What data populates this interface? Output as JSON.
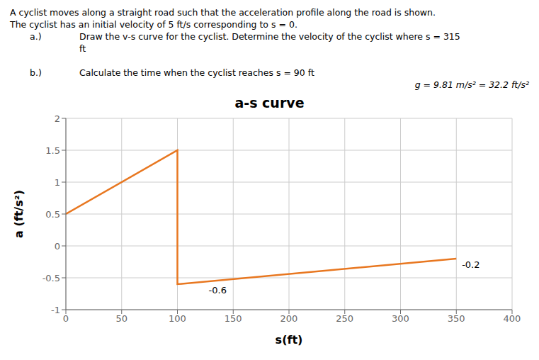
{
  "chart_data": {
    "type": "line",
    "title": "a-s curve",
    "subtitle": [
      "A cyclist moves along a straight road such that the acceleration profile along the road is shown.",
      "The cyclist has an initial velocity of 5 ft/s corresponding to s = 0.",
      "a.)",
      "Draw the v-s curve for the cyclist. Determine the velocity of the cyclist where s = 315",
      "ft",
      "b.)",
      "Calculate the time when the cyclist reaches s = 90 ft",
      "g = 9.81 m/s² = 32.2 ft/s²"
    ],
    "xlabel": "s(ft)",
    "ylabel": "a (ft/s²)",
    "x": [
      0,
      100,
      100,
      350
    ],
    "values": [
      0.5,
      1.5,
      -0.6,
      -0.2
    ],
    "color": "#E87720",
    "xlim": [
      0,
      400
    ],
    "ylim": [
      -1,
      2
    ],
    "xticks": [
      0,
      50,
      100,
      150,
      200,
      250,
      300,
      350,
      400
    ],
    "yticks": [
      -1,
      -0.5,
      0,
      0.5,
      1,
      1.5,
      2
    ],
    "grid": true,
    "annotations": [
      {
        "text": "-0.6",
        "x": 128,
        "y": -0.64
      },
      {
        "text": "-0.2",
        "x": 355,
        "y": -0.24
      }
    ]
  }
}
